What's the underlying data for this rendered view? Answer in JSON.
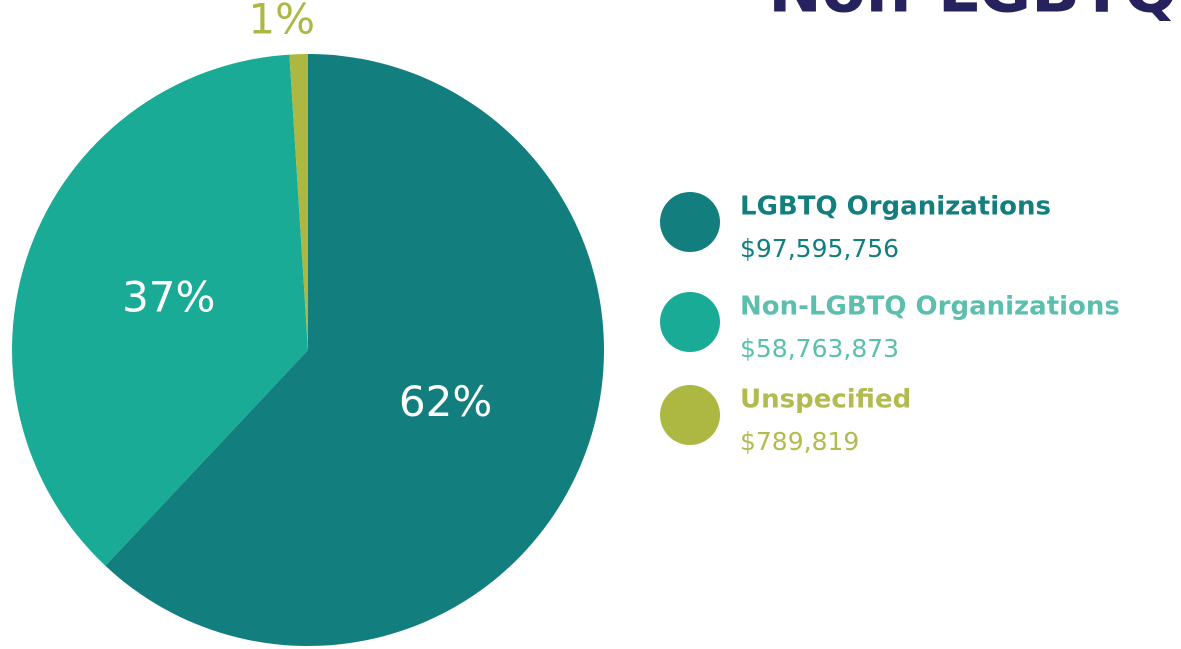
{
  "chart_data": {
    "type": "pie",
    "title": "Non-LGBTQ",
    "categories": [
      "LGBTQ Organizations",
      "Non-LGBTQ Organizations",
      "Unspecified"
    ],
    "values": [
      62,
      37,
      1
    ],
    "value_labels": [
      "62%",
      "37%",
      "1%"
    ],
    "colors": [
      "#127e7e",
      "#1aab96",
      "#adb843"
    ],
    "amounts": [
      "$97,595,756",
      "$58,763,873",
      "$789,819"
    ]
  }
}
